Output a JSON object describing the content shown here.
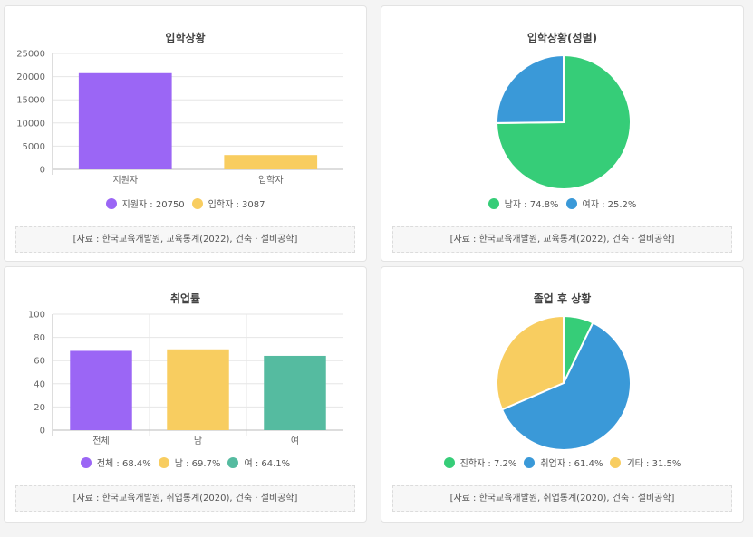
{
  "charts": [
    {
      "title": "입학상황",
      "source": "[자료 : 한국교육개발원, 교육통계(2022), 건축 · 설비공학]",
      "chart_data": {
        "type": "bar",
        "categories": [
          "지원자",
          "입학자"
        ],
        "values": [
          20750,
          3087
        ],
        "colors": [
          "#9b66f5",
          "#f8cd60"
        ],
        "ylim": [
          0,
          25000
        ],
        "yticks": [
          0,
          5000,
          10000,
          15000,
          20000,
          25000
        ],
        "grid": true,
        "legend_position": "bottom",
        "legend": [
          "지원자 : 20750",
          "입학자 : 3087"
        ]
      }
    },
    {
      "title": "입학상황(성별)",
      "source": "[자료 : 한국교육개발원, 교육통계(2022), 건축 · 설비공학]",
      "chart_data": {
        "type": "pie",
        "labels": [
          "남자",
          "여자"
        ],
        "values": [
          74.8,
          25.2
        ],
        "colors": [
          "#36cd78",
          "#3a99d8"
        ],
        "legend_position": "bottom",
        "legend": [
          "남자 : 74.8%",
          "여자 : 25.2%"
        ]
      }
    },
    {
      "title": "취업률",
      "source": "[자료 : 한국교육개발원, 취업통계(2020), 건축 · 설비공학]",
      "chart_data": {
        "type": "bar",
        "categories": [
          "전체",
          "남",
          "여"
        ],
        "values": [
          68.4,
          69.7,
          64.1
        ],
        "colors": [
          "#9b66f5",
          "#f8cd60",
          "#55bba0"
        ],
        "ylim": [
          0,
          100
        ],
        "yticks": [
          0,
          20,
          40,
          60,
          80,
          100
        ],
        "grid": true,
        "legend_position": "bottom",
        "legend": [
          "전체 : 68.4%",
          "남 : 69.7%",
          "여 : 64.1%"
        ]
      }
    },
    {
      "title": "졸업 후 상황",
      "source": "[자료 : 한국교육개발원, 취업통계(2020), 건축 · 설비공학]",
      "chart_data": {
        "type": "pie",
        "labels": [
          "진학자",
          "취업자",
          "기타"
        ],
        "values": [
          7.2,
          61.4,
          31.5
        ],
        "colors": [
          "#36cd78",
          "#3a99d8",
          "#f8cd60"
        ],
        "legend_position": "bottom",
        "legend": [
          "진학자 : 7.2%",
          "취업자 : 61.4%",
          "기타 : 31.5%"
        ]
      }
    }
  ]
}
